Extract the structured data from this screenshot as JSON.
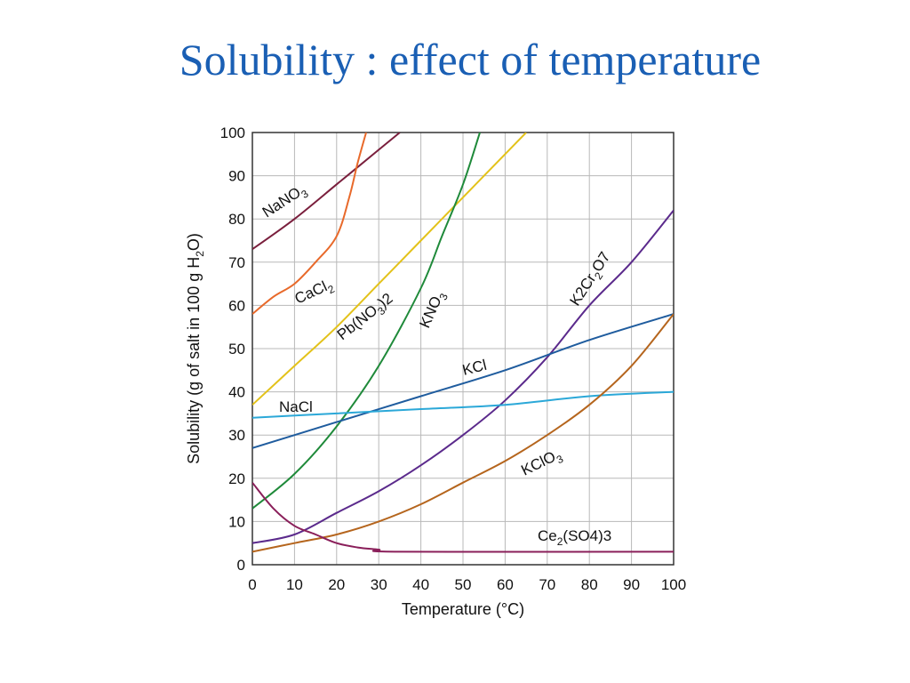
{
  "slide": {
    "title": "Solubility : effect of temperature"
  },
  "chart_data": {
    "type": "line",
    "xlabel": "Temperature (°C)",
    "ylabel": "Solubility (g of salt in 100 g H2O)",
    "ylabel_parts": [
      "Solubility (g of salt in 100 g H",
      "2",
      "O)"
    ],
    "xlim": [
      0,
      100
    ],
    "ylim": [
      0,
      100
    ],
    "xticks": [
      0,
      10,
      20,
      30,
      40,
      50,
      60,
      70,
      80,
      90,
      100
    ],
    "yticks": [
      0,
      10,
      20,
      30,
      40,
      50,
      60,
      70,
      80,
      90,
      100
    ],
    "grid": true,
    "series": [
      {
        "name": "NaNO3",
        "label_parts": [
          "NaNO",
          "3",
          ""
        ],
        "color": "#7a1f3d",
        "points": [
          [
            0,
            73
          ],
          [
            10,
            80
          ],
          [
            20,
            88
          ],
          [
            30,
            96
          ],
          [
            35,
            100
          ]
        ]
      },
      {
        "name": "CaCl2",
        "label_parts": [
          "CaCl",
          "2",
          ""
        ],
        "color": "#e8692a",
        "points": [
          [
            0,
            58
          ],
          [
            5,
            62
          ],
          [
            10,
            65
          ],
          [
            15,
            70
          ],
          [
            20,
            76
          ],
          [
            23,
            85
          ],
          [
            25,
            93
          ],
          [
            27,
            100
          ]
        ]
      },
      {
        "name": "Pb(NO3)2",
        "label_parts": [
          "Pb(NO",
          "3",
          ")2"
        ],
        "color": "#e3c21a",
        "points": [
          [
            0,
            37
          ],
          [
            10,
            46
          ],
          [
            20,
            55
          ],
          [
            30,
            65
          ],
          [
            40,
            75
          ],
          [
            50,
            85
          ],
          [
            60,
            95
          ],
          [
            65,
            100
          ]
        ]
      },
      {
        "name": "KNO3",
        "label_parts": [
          "KNO",
          "3",
          ""
        ],
        "color": "#1f8a3a",
        "points": [
          [
            0,
            13
          ],
          [
            10,
            21
          ],
          [
            20,
            32
          ],
          [
            30,
            46
          ],
          [
            40,
            64
          ],
          [
            45,
            76
          ],
          [
            50,
            88
          ],
          [
            54,
            100
          ]
        ]
      },
      {
        "name": "K2Cr2O7",
        "label_parts": [
          "K2Cr",
          "2",
          "O7"
        ],
        "color": "#5b2a8c",
        "points": [
          [
            0,
            5
          ],
          [
            10,
            7
          ],
          [
            20,
            12
          ],
          [
            30,
            17
          ],
          [
            40,
            23
          ],
          [
            50,
            30
          ],
          [
            60,
            38
          ],
          [
            70,
            48
          ],
          [
            80,
            60
          ],
          [
            90,
            70
          ],
          [
            100,
            82
          ]
        ]
      },
      {
        "name": "KCl",
        "label_parts": [
          "KCl",
          "",
          ""
        ],
        "color": "#1f5c9e",
        "points": [
          [
            0,
            27
          ],
          [
            20,
            33
          ],
          [
            40,
            39
          ],
          [
            60,
            45
          ],
          [
            80,
            52
          ],
          [
            100,
            58
          ]
        ]
      },
      {
        "name": "NaCl",
        "label_parts": [
          "NaCl",
          "",
          ""
        ],
        "color": "#2ba8d8",
        "points": [
          [
            0,
            34
          ],
          [
            20,
            35
          ],
          [
            40,
            36
          ],
          [
            60,
            37
          ],
          [
            80,
            39
          ],
          [
            100,
            40
          ]
        ]
      },
      {
        "name": "KClO3",
        "label_parts": [
          "KClO",
          "3",
          ""
        ],
        "color": "#b5651d",
        "points": [
          [
            0,
            3
          ],
          [
            10,
            5
          ],
          [
            20,
            7
          ],
          [
            30,
            10
          ],
          [
            40,
            14
          ],
          [
            50,
            19
          ],
          [
            60,
            24
          ],
          [
            70,
            30
          ],
          [
            80,
            37
          ],
          [
            90,
            46
          ],
          [
            100,
            58
          ]
        ]
      },
      {
        "name": "Ce2(SO4)3",
        "label_parts": [
          "Ce",
          "2",
          "(SO4)3"
        ],
        "color": "#8a1f5a",
        "points": [
          [
            0,
            19
          ],
          [
            5,
            13
          ],
          [
            10,
            9
          ],
          [
            15,
            7
          ],
          [
            20,
            5
          ],
          [
            25,
            4
          ],
          [
            30,
            3.5
          ],
          [
            35,
            3
          ],
          [
            100,
            3
          ]
        ]
      }
    ]
  }
}
